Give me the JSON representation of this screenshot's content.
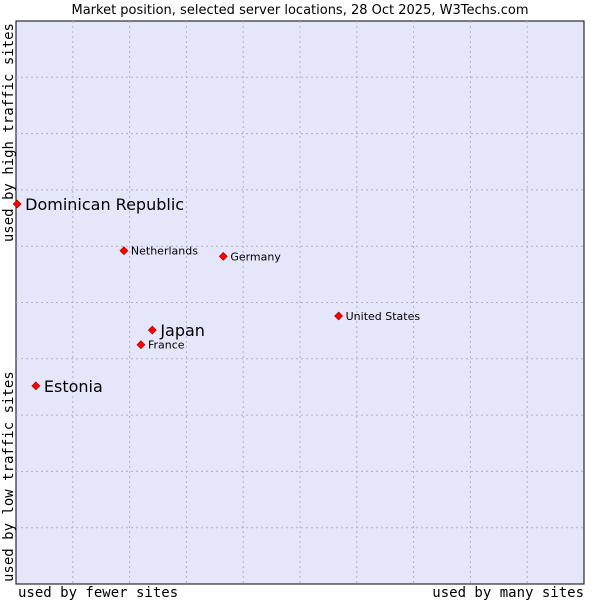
{
  "chart_data": {
    "type": "scatter",
    "title": "Market position, selected server locations, 28 Oct 2025, W3Techs.com",
    "xlabel_low": "used by fewer sites",
    "xlabel_high": "used by many sites",
    "ylabel_low": "used by low traffic sites",
    "ylabel_high": "used by high traffic sites",
    "xlim": [
      0,
      100
    ],
    "ylim": [
      0,
      100
    ],
    "grid": true,
    "colors": {
      "plot_bg": "#e6e6fa",
      "grid": "#b0b0c8",
      "point": "#ff0000",
      "point_stroke": "#990000"
    },
    "points": [
      {
        "label": "Dominican Republic",
        "x": 0.2,
        "y": 67.5,
        "emphasis": true
      },
      {
        "label": "Netherlands",
        "x": 19.0,
        "y": 59.2,
        "emphasis": false
      },
      {
        "label": "Germany",
        "x": 36.5,
        "y": 58.2,
        "emphasis": false
      },
      {
        "label": "United States",
        "x": 56.8,
        "y": 47.6,
        "emphasis": false
      },
      {
        "label": "Japan",
        "x": 24.0,
        "y": 45.1,
        "emphasis": true
      },
      {
        "label": "France",
        "x": 22.0,
        "y": 42.5,
        "emphasis": false
      },
      {
        "label": "Estonia",
        "x": 3.5,
        "y": 35.2,
        "emphasis": true
      }
    ]
  }
}
